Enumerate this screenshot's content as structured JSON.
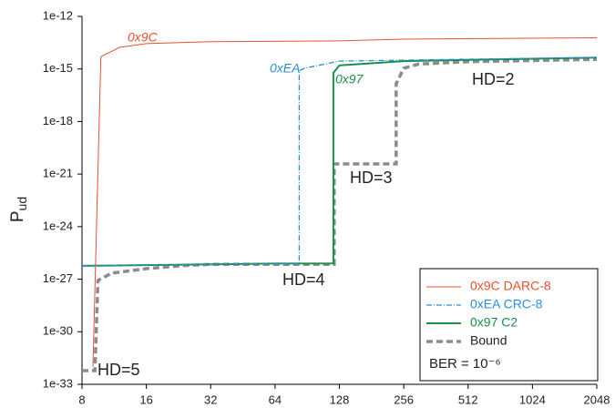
{
  "chart_data": {
    "type": "line",
    "ylabel": {
      "text": "P",
      "sub": "ud"
    },
    "xscale": "log2",
    "yscale": "log",
    "xlim": [
      8,
      2048
    ],
    "xticks": [
      8,
      16,
      32,
      64,
      128,
      256,
      512,
      1024,
      2048
    ],
    "ylim": [
      1e-33,
      1e-12
    ],
    "yticks": [
      {
        "value": 1e-33,
        "label": "1e-33"
      },
      {
        "value": 1e-30,
        "label": "1e-30"
      },
      {
        "value": 1e-27,
        "label": "1e-27"
      },
      {
        "value": 1e-24,
        "label": "1e-24"
      },
      {
        "value": 1e-21,
        "label": "1e-21"
      },
      {
        "value": 1e-18,
        "label": "1e-18"
      },
      {
        "value": 1e-15,
        "label": "1e-15"
      },
      {
        "value": 1e-12,
        "label": "1e-12"
      }
    ],
    "legend": "lower right",
    "legend_note": "BER = 10⁻⁶",
    "series": [
      {
        "name": "0x9C DARC-8",
        "color": "#e8502e",
        "style": "solid",
        "width": 1,
        "x": [
          9,
          9.8,
          12,
          16,
          32,
          128,
          256,
          2048
        ],
        "values": [
          1e-32,
          5e-15,
          1.7e-14,
          2.8e-14,
          3.6e-14,
          4e-14,
          5e-14,
          6e-14
        ]
      },
      {
        "name": "0xEA CRC-8",
        "color": "#2a8fd6",
        "style": "dashdot",
        "width": 1.3,
        "x": [
          8,
          64,
          83,
          83,
          88,
          128,
          512,
          2048
        ],
        "values": [
          6e-27,
          7.5e-27,
          7.5e-27,
          8e-16,
          1.1e-15,
          2.8e-15,
          3.6e-15,
          4.5e-15
        ]
      },
      {
        "name": "0x97  C2",
        "color": "#1a8f4a",
        "style": "solid",
        "width": 2,
        "x": [
          8,
          64,
          120,
          120,
          128,
          256,
          2048
        ],
        "values": [
          5.8e-27,
          7.8e-27,
          8e-27,
          6e-16,
          1.6e-15,
          2.8e-15,
          4.4e-15
        ]
      },
      {
        "name": "Bound",
        "color": "#8c8c8c",
        "style": "dashed",
        "width": 3.5,
        "x": [
          8,
          9.2,
          9.5,
          11,
          16,
          24,
          32,
          121,
          121,
          236,
          236,
          256,
          300,
          512,
          2048
        ],
        "values": [
          6e-33,
          6e-33,
          8.5e-28,
          2.2e-27,
          4e-27,
          6e-27,
          7e-27,
          7e-27,
          3.8e-21,
          3.8e-21,
          1.4e-16,
          1.1e-15,
          1.9e-15,
          2.6e-15,
          3.5e-15
        ]
      }
    ],
    "annotations": [
      {
        "text": "0x9C",
        "color": "#e8502e",
        "italic": true
      },
      {
        "text": "0xEA",
        "color": "#2a8fd6",
        "italic": true
      },
      {
        "text": "0x97",
        "color": "#1a8f4a",
        "italic": true
      },
      {
        "text": "HD=2",
        "color": "#222222",
        "italic": false
      },
      {
        "text": "HD=3",
        "color": "#222222",
        "italic": false
      },
      {
        "text": "HD=4",
        "color": "#222222",
        "italic": false
      },
      {
        "text": "HD=5",
        "color": "#222222",
        "italic": false
      }
    ]
  }
}
